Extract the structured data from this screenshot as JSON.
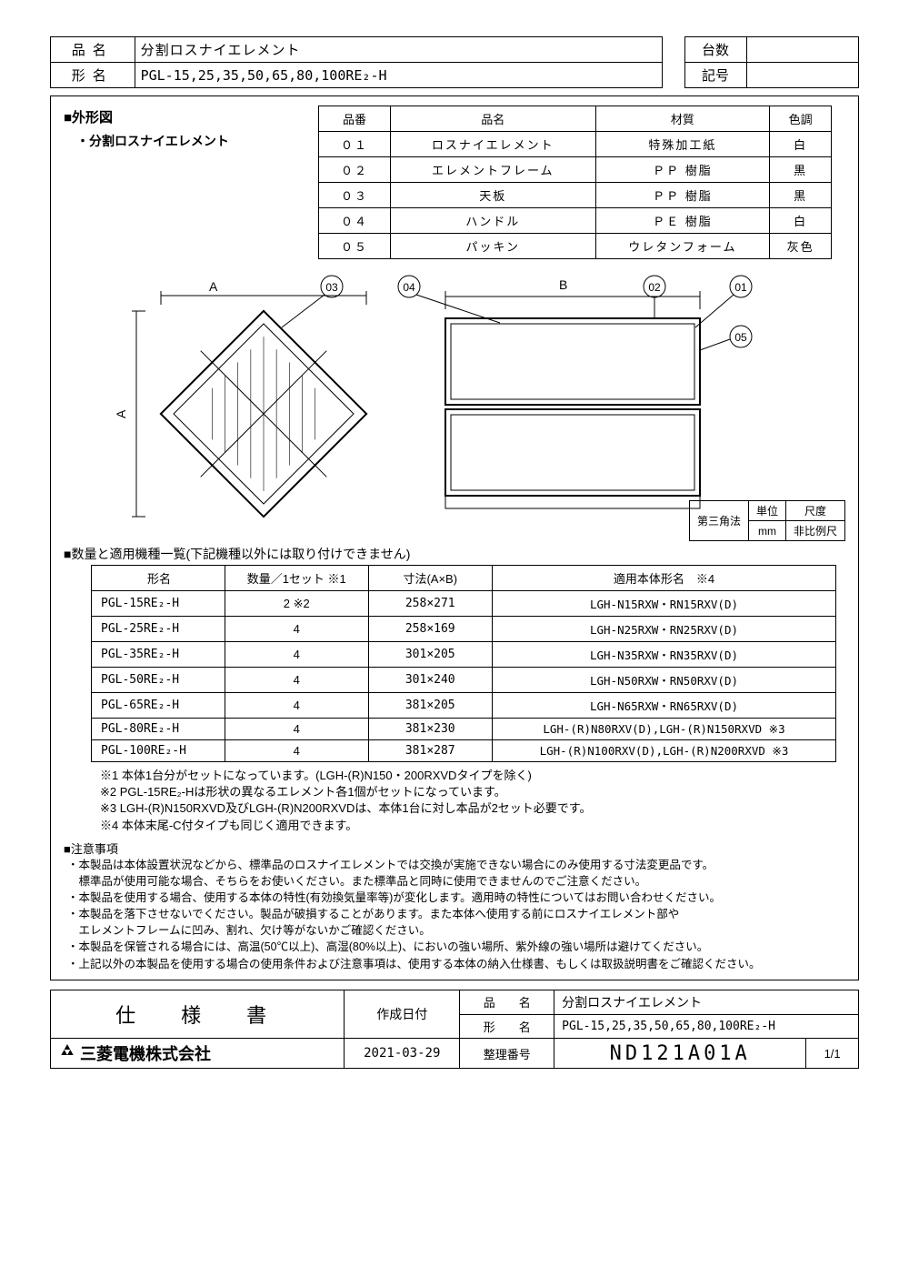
{
  "header": {
    "product_label": "品名",
    "product_name": "分割ロスナイエレメント",
    "model_label": "形名",
    "model_name": "PGL-15,25,35,50,65,80,100RE₂-H",
    "qty_label": "台数",
    "qty_value": "",
    "sym_label": "記号",
    "sym_value": ""
  },
  "outline_title": "■外形図",
  "subtitle": "・分割ロスナイエレメント",
  "parts_headers": [
    "品番",
    "品名",
    "材質",
    "色調"
  ],
  "parts": [
    {
      "no": "０１",
      "name": "ロスナイエレメント",
      "mat": "特殊加工紙",
      "col": "白"
    },
    {
      "no": "０２",
      "name": "エレメントフレーム",
      "mat": "ＰＰ 樹脂",
      "col": "黒"
    },
    {
      "no": "０３",
      "name": "天板",
      "mat": "ＰＰ 樹脂",
      "col": "黒"
    },
    {
      "no": "０４",
      "name": "ハンドル",
      "mat": "ＰＥ 樹脂",
      "col": "白"
    },
    {
      "no": "０５",
      "name": "パッキン",
      "mat": "ウレタンフォーム",
      "col": "灰色"
    }
  ],
  "diagram": {
    "labels": {
      "A": "A",
      "B": "B",
      "03": "03",
      "04": "04",
      "02": "02",
      "01": "01",
      "05": "05"
    }
  },
  "scale": {
    "method": "第三角法",
    "unit_label": "単位",
    "unit": "mm",
    "scale_label": "尺度",
    "scale": "非比例尺"
  },
  "list_title": "■数量と適用機種一覧(下記機種以外には取り付けできません)",
  "models_headers": [
    "形名",
    "数量／1セット ※1",
    "寸法(A×B)",
    "適用本体形名　※4"
  ],
  "models": [
    {
      "m": "PGL-15RE₂-H",
      "q": "2 ※2",
      "d": "258×271",
      "a": "LGH-N15RXW・RN15RXV(D)"
    },
    {
      "m": "PGL-25RE₂-H",
      "q": "4",
      "d": "258×169",
      "a": "LGH-N25RXW・RN25RXV(D)"
    },
    {
      "m": "PGL-35RE₂-H",
      "q": "4",
      "d": "301×205",
      "a": "LGH-N35RXW・RN35RXV(D)"
    },
    {
      "m": "PGL-50RE₂-H",
      "q": "4",
      "d": "301×240",
      "a": "LGH-N50RXW・RN50RXV(D)"
    },
    {
      "m": "PGL-65RE₂-H",
      "q": "4",
      "d": "381×205",
      "a": "LGH-N65RXW・RN65RXV(D)"
    },
    {
      "m": "PGL-80RE₂-H",
      "q": "4",
      "d": "381×230",
      "a": "LGH-(R)N80RXV(D),LGH-(R)N150RXVD ※3"
    },
    {
      "m": "PGL-100RE₂-H",
      "q": "4",
      "d": "381×287",
      "a": "LGH-(R)N100RXV(D),LGH-(R)N200RXVD ※3"
    }
  ],
  "footnotes": [
    "※1 本体1台分がセットになっています。(LGH-(R)N150・200RXVDタイプを除く)",
    "※2 PGL-15RE₂-Hは形状の異なるエレメント各1個がセットになっています。",
    "※3 LGH-(R)N150RXVD及びLGH-(R)N200RXVDは、本体1台に対し本品が2セット必要です。",
    "※4 本体末尾-C付タイプも同じく適用できます。"
  ],
  "caution_title": "■注意事項",
  "cautions": [
    "・本製品は本体設置状況などから、標準品のロスナイエレメントでは交換が実施できない場合にのみ使用する寸法変更品です。",
    "　標準品が使用可能な場合、そちらをお使いください。また標準品と同時に使用できませんのでご注意ください。",
    "・本製品を使用する場合、使用する本体の特性(有効換気量率等)が変化します。適用時の特性についてはお問い合わせください。",
    "・本製品を落下させないでください。製品が破損することがあります。また本体へ使用する前にロスナイエレメント部や",
    "　エレメントフレームに凹み、割れ、欠け等がないかご確認ください。",
    "・本製品を保管される場合には、高温(50℃以上)、高湿(80%以上)、においの強い場所、紫外線の強い場所は避けてください。",
    "・上記以外の本製品を使用する場合の使用条件および注意事項は、使用する本体の納入仕様書、もしくは取扱説明書をご確認ください。"
  ],
  "titleblock": {
    "spec": "仕　様　書",
    "date_label": "作成日付",
    "pn_label": "品　　名",
    "mn_label": "形　　名",
    "product": "分割ロスナイエレメント",
    "model": "PGL-15,25,35,50,65,80,100RE₂-H",
    "company": "三菱電機株式会社",
    "date": "2021-03-29",
    "docno_label": "整理番号",
    "docno": "ND121A01A",
    "page": "1/1"
  }
}
